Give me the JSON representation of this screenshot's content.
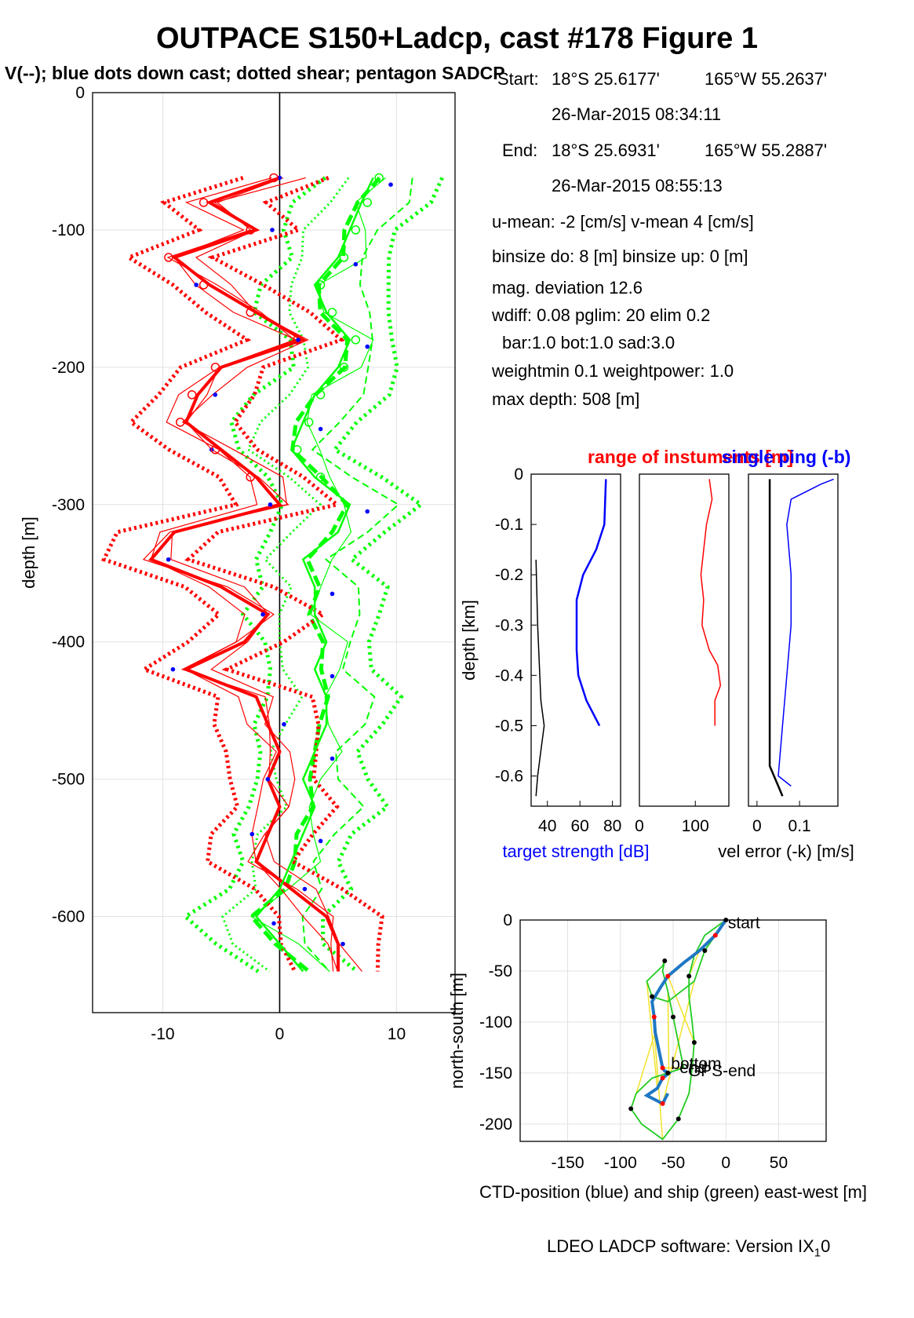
{
  "figure": {
    "title": "OUTPACE S150+Ladcp, cast #178  Figure 1",
    "subtitle": "V(--); blue dots down cast; dotted shear; pentagon SADCP",
    "footer": "LDEO LADCP software: Version IX",
    "footer_sub": "1",
    "footer_tail": "0"
  },
  "info": {
    "start_label": "Start:",
    "start_lat": "18°S 25.6177'",
    "start_lon": "165°W 55.2637'",
    "start_time": "26-Mar-2015 08:34:11",
    "end_label": "End:",
    "end_lat": "18°S 25.6931'",
    "end_lon": "165°W 55.2887'",
    "end_time": "26-Mar-2015 08:55:13",
    "u_mean": "u-mean:  -2 [cm/s]    v-mean   4 [cm/s]",
    "binsize": "binsize do: 8 [m]  binsize up:  0 [m]",
    "mag_dev": "mag. deviation 12.6",
    "wdiff": "wdiff: 0.08  pglim: 20  elim 0.2",
    "bar": "bar:1.0 bot:1.0 sad:3.0",
    "weight": "weightmin 0.1  weightpower: 1.0",
    "max_depth": "max depth: 508 [m]"
  },
  "chart_data": [
    {
      "type": "line",
      "panel": "velocity-profile",
      "ylabel": "depth [m]",
      "xlim": [
        -16,
        15
      ],
      "ylim": [
        -670,
        0
      ],
      "xticks": [
        "-10",
        "0",
        "10"
      ],
      "yticks": [
        "0",
        "-100",
        "-200",
        "-300",
        "-400",
        "-500",
        "-600"
      ],
      "grid": true,
      "colors": {
        "u": "#ff0000",
        "v": "#00ff00",
        "dots": "#0000ff"
      },
      "u_mean_profile": {
        "depth": [
          -62,
          -80,
          -100,
          -120,
          -140,
          -160,
          -180,
          -200,
          -220,
          -240,
          -260,
          -280,
          -300,
          -320,
          -340,
          -360,
          -380,
          -400,
          -420,
          -440,
          -460,
          -480,
          -500,
          -520,
          -540,
          -560,
          -580,
          -600,
          -620,
          -640
        ],
        "u": [
          0,
          -6,
          -2,
          -9,
          -6,
          -2,
          2,
          -5,
          -7,
          -8,
          -5,
          -2,
          0,
          -9,
          -11,
          -5,
          -1,
          -3,
          -8,
          -2,
          -1,
          0,
          -1,
          0,
          -1,
          -2,
          1,
          4,
          5,
          5
        ]
      },
      "v_mean_profile": {
        "depth": [
          -62,
          -80,
          -100,
          -120,
          -140,
          -160,
          -180,
          -200,
          -220,
          -240,
          -260,
          -280,
          -300,
          -320,
          -340,
          -360,
          -380,
          -400,
          -420,
          -440,
          -460,
          -480,
          -500,
          -520,
          -540,
          -560,
          -580,
          -600,
          -620,
          -640
        ],
        "v": [
          8,
          7,
          6,
          5,
          3,
          4,
          6,
          5,
          3,
          2,
          1,
          3,
          6,
          5,
          2,
          3,
          3,
          4,
          3,
          4,
          4,
          3,
          2,
          3,
          2,
          1,
          0,
          -2,
          0,
          2
        ]
      }
    },
    {
      "type": "line",
      "panel": "target-strength",
      "xlabel": "target strength [dB]",
      "ylabel": "depth [km]",
      "title": "range of instuments [m]",
      "xlim": [
        30,
        85
      ],
      "ylim": [
        -0.66,
        0
      ],
      "xticks": [
        "40",
        "60",
        "80"
      ],
      "yticks": [
        "0",
        "-0.1",
        "-0.2",
        "-0.3",
        "-0.4",
        "-0.5",
        "-0.6"
      ],
      "series": [
        {
          "depth": [
            -0.01,
            -0.1,
            -0.15,
            -0.2,
            -0.25,
            -0.3,
            -0.35,
            -0.4,
            -0.45,
            -0.5
          ],
          "values": [
            76,
            75,
            70,
            62,
            58,
            58,
            58,
            59,
            64,
            72
          ]
        },
        {
          "depth": [
            -0.17,
            -0.3,
            -0.45,
            -0.5,
            -0.55,
            -0.6,
            -0.64
          ],
          "values": [
            33,
            34,
            36,
            38,
            36,
            34,
            33
          ]
        }
      ]
    },
    {
      "type": "line",
      "panel": "range",
      "xlim": [
        0,
        160
      ],
      "ylim": [
        -0.66,
        0
      ],
      "xticks": [
        "0",
        "100"
      ],
      "series": [
        {
          "depth": [
            -0.01,
            -0.05,
            -0.1,
            -0.2,
            -0.25,
            -0.3,
            -0.35,
            -0.38,
            -0.42,
            -0.45,
            -0.5
          ],
          "values": [
            125,
            130,
            120,
            110,
            115,
            112,
            125,
            140,
            145,
            135,
            135
          ]
        }
      ]
    },
    {
      "type": "line",
      "panel": "vel-error",
      "title": "single ping (-b)",
      "xlabel": "vel error (-k) [m/s]",
      "xlim": [
        -0.02,
        0.19
      ],
      "ylim": [
        -0.66,
        0
      ],
      "xticks": [
        "0",
        "0.1"
      ],
      "series": [
        {
          "depth": [
            -0.01,
            -0.1,
            -0.2,
            -0.3,
            -0.4,
            -0.5,
            -0.58,
            -0.62,
            -0.64
          ],
          "values": [
            0.03,
            0.03,
            0.03,
            0.03,
            0.03,
            0.03,
            0.03,
            0.05,
            0.06
          ]
        },
        {
          "depth": [
            -0.01,
            -0.02,
            -0.05,
            -0.1,
            -0.2,
            -0.3,
            -0.4,
            -0.5,
            -0.6,
            -0.62
          ],
          "values": [
            0.18,
            0.15,
            0.08,
            0.07,
            0.08,
            0.08,
            0.07,
            0.06,
            0.05,
            0.08
          ]
        }
      ]
    },
    {
      "type": "line",
      "panel": "position",
      "xlabel": "CTD-position (blue) and ship (green) east-west [m]",
      "ylabel": "north-south [m]",
      "xlim": [
        -195,
        95
      ],
      "ylim": [
        -217,
        0
      ],
      "xticks": [
        "-150",
        "-100",
        "-50",
        "0",
        "50"
      ],
      "yticks": [
        "0",
        "-50",
        "-100",
        "-150",
        "-200"
      ],
      "labels": [
        {
          "text": "start",
          "x": 2,
          "y": -2
        },
        {
          "text": "bottom",
          "x": -52,
          "y": -140
        },
        {
          "text": "end",
          "x": -44,
          "y": -144
        },
        {
          "text": "GPS-end",
          "x": -36,
          "y": -147
        }
      ],
      "ctd": {
        "x": [
          0,
          -10,
          -25,
          -40,
          -55,
          -62,
          -70,
          -68,
          -67,
          -63,
          -60,
          -58,
          -54,
          -60,
          -65,
          -75,
          -60,
          -55
        ],
        "y": [
          0,
          -15,
          -30,
          -42,
          -55,
          -66,
          -80,
          -95,
          -110,
          -130,
          -145,
          -148,
          -150,
          -155,
          -165,
          -172,
          -180,
          -170
        ]
      },
      "ship": {
        "x": [
          0,
          -20,
          -30,
          -35,
          -35,
          -32,
          -30,
          -32,
          -35,
          -45,
          -60,
          -80,
          -90,
          -85,
          -70,
          -55,
          -40,
          -45,
          -50,
          -55,
          -60,
          -58,
          -60,
          -75,
          -70,
          -55,
          -30,
          -20,
          0
        ],
        "y": [
          0,
          -15,
          -35,
          -55,
          -75,
          -100,
          -120,
          -145,
          -170,
          -195,
          -215,
          -200,
          -185,
          -170,
          -155,
          -150,
          -145,
          -120,
          -95,
          -70,
          -50,
          -40,
          -45,
          -60,
          -75,
          -80,
          -60,
          -30,
          0
        ]
      }
    }
  ]
}
